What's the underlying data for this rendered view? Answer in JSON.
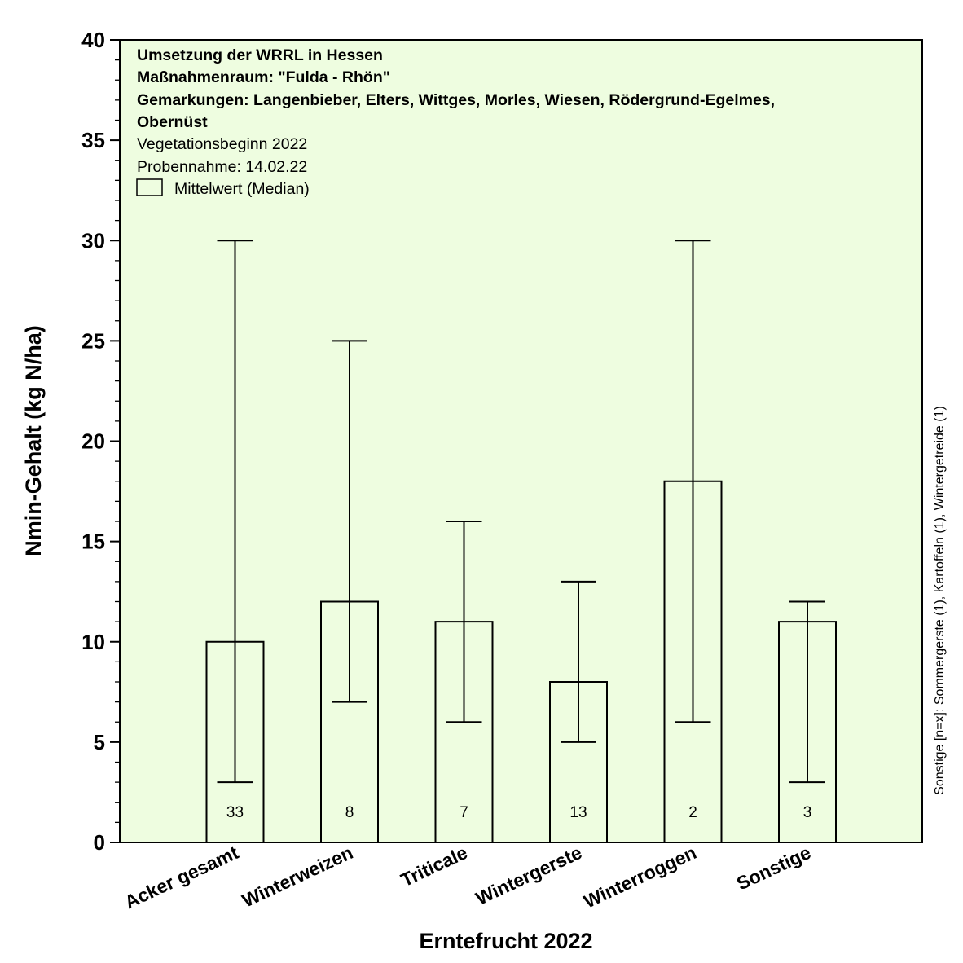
{
  "chart_data": {
    "type": "bar",
    "title_lines": [
      "Umsetzung der WRRL in Hessen",
      "Maßnahmenraum: \"Fulda - Rhön\"",
      "Gemarkungen: Langenbieber, Elters, Wittges, Morles, Wiesen, Rödergrund-Egelmes,",
      "Obernüst"
    ],
    "subtitle_lines": [
      "Vegetationsbeginn 2022",
      "Probennahme: 14.02.22"
    ],
    "legend": {
      "label": "Mittelwert (Median)",
      "placement": "top-left"
    },
    "xlabel": "Erntefrucht 2022",
    "ylabel": "Nmin-Gehalt (kg N/ha)",
    "ylim": [
      0,
      40
    ],
    "yticks": [
      0,
      5,
      10,
      15,
      20,
      25,
      30,
      35,
      40
    ],
    "categories": [
      "Acker gesamt",
      "Winterweizen",
      "Triticale",
      "Wintergerste",
      "Winterroggen",
      "Sonstige"
    ],
    "values": [
      10,
      12,
      11,
      8,
      18,
      11
    ],
    "error_min": [
      3,
      7,
      6,
      5,
      6,
      3
    ],
    "error_max": [
      30,
      25,
      16,
      13,
      30,
      12
    ],
    "n": [
      "33",
      "8",
      "7",
      "13",
      "2",
      "3"
    ],
    "side_note": "Sonstige [n=x]: Sommergerste (1), Kartoffeln (1), Wintergetreide (1)",
    "colors": {
      "plot_background": "#eefde0",
      "bar_fill": "#eefde0",
      "stroke": "#000000"
    }
  }
}
